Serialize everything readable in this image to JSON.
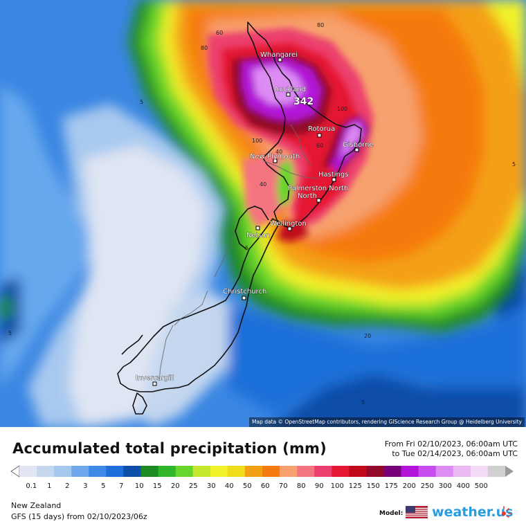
{
  "map": {
    "attribution": "Map data © OpenStreetMap contributors, rendering GIScience Research Group @ Heidelberg University",
    "max_label": "342",
    "cities": [
      {
        "name": "Whangarei"
      },
      {
        "name": "Auckland"
      },
      {
        "name": "Rotorua"
      },
      {
        "name": "Gisborne"
      },
      {
        "name": "New Plymouth"
      },
      {
        "name": "Hastings"
      },
      {
        "name": "Palmerston North"
      },
      {
        "name": "Wellington"
      },
      {
        "name": "Nelson"
      },
      {
        "name": "Christchurch"
      },
      {
        "name": "Invercargill"
      }
    ],
    "contour_labels": [
      "60",
      "80",
      "80",
      "5",
      "100",
      "60",
      "100",
      "40",
      "40",
      "5",
      "5",
      "20",
      "5",
      "5"
    ]
  },
  "footer": {
    "title": "Accumulated total precipitation (mm)",
    "period_from": "From Fri 02/10/2023, 06:00am UTC",
    "period_to": "to Tue 02/14/2023, 06:00am UTC",
    "region": "New Zealand",
    "run": "GFS (15 days) from  02/10/2023/06z",
    "model_label": "Model:",
    "brand": "weather.us"
  },
  "legend": {
    "ticks": [
      "0.1",
      "1",
      "2",
      "3",
      "5",
      "7",
      "10",
      "15",
      "20",
      "25",
      "30",
      "40",
      "50",
      "60",
      "70",
      "80",
      "90",
      "100",
      "125",
      "150",
      "175",
      "200",
      "250",
      "300",
      "400",
      "500"
    ],
    "colors": [
      "#e2e6f3",
      "#c4d7ef",
      "#a5c8ef",
      "#6ea7ec",
      "#3d8ae6",
      "#1e6fd9",
      "#0d4ea8",
      "#1c8a22",
      "#2fb52a",
      "#66d62c",
      "#c5e82f",
      "#f2f22a",
      "#eedd18",
      "#f4a014",
      "#f57a10",
      "#f7a26e",
      "#f47480",
      "#ec3f6e",
      "#e51833",
      "#c00a1c",
      "#920828",
      "#780078",
      "#b215d8",
      "#c84df0",
      "#dd8cf4",
      "#eab8f3",
      "#f4dcf7",
      "#d0d0d0"
    ],
    "under_color": "#ffffff",
    "over_color": "#9a9a9a"
  }
}
